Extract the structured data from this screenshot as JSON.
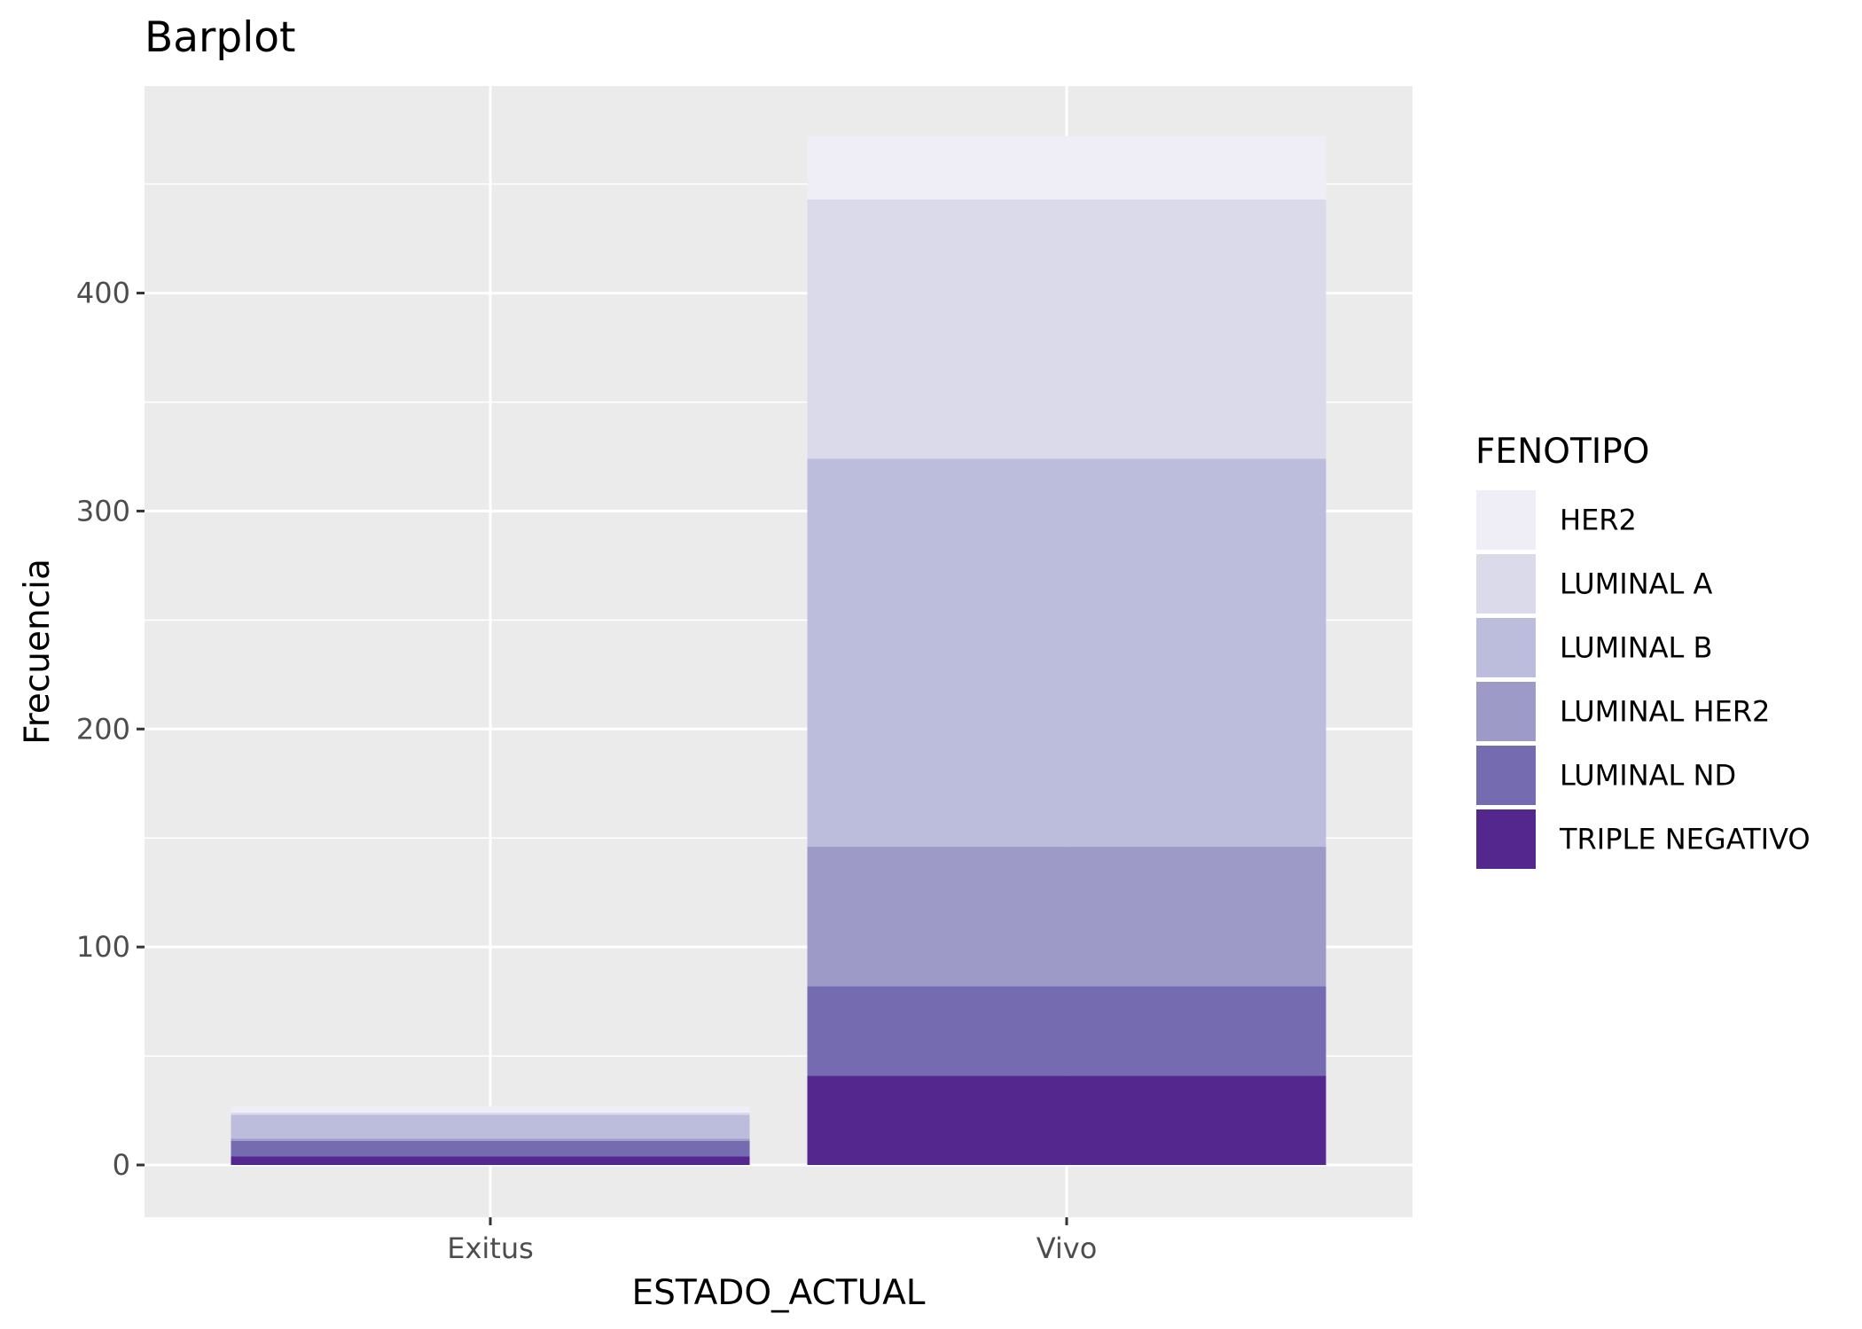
{
  "chart_data": {
    "type": "bar",
    "stacked": true,
    "title": "Barplot",
    "xlabel": "ESTADO_ACTUAL",
    "ylabel": "Frecuencia",
    "categories": [
      "Exitus",
      "Vivo"
    ],
    "ylim": [
      -24,
      495
    ],
    "yticks": [
      0,
      100,
      200,
      300,
      400
    ],
    "grid": true,
    "legend": {
      "title": "FENOTIPO",
      "placement": "right"
    },
    "series": [
      {
        "name": "HER2",
        "color": "#efedf5",
        "values": [
          3,
          29
        ]
      },
      {
        "name": "LUMINAL A",
        "color": "#dadaeb",
        "values": [
          1,
          119
        ]
      },
      {
        "name": "LUMINAL B",
        "color": "#bcbddc",
        "values": [
          11,
          178
        ]
      },
      {
        "name": "LUMINAL HER2",
        "color": "#9e9ac8",
        "values": [
          1,
          64
        ]
      },
      {
        "name": "LUMINAL ND",
        "color": "#756bb1",
        "values": [
          7,
          41
        ]
      },
      {
        "name": "TRIPLE NEGATIVO",
        "color": "#54278f",
        "values": [
          4,
          41
        ]
      }
    ]
  }
}
